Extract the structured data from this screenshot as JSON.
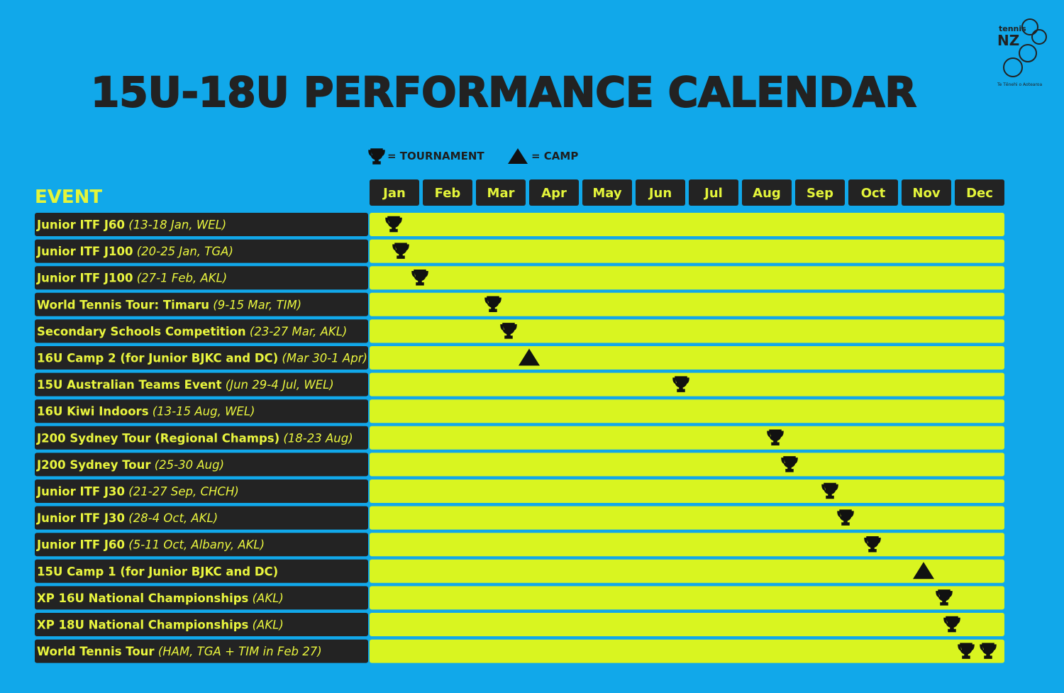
{
  "header": {
    "title": "15U-18U PERFORMANCE CALENDAR",
    "logo": {
      "word": "tennis",
      "mark": "NZ",
      "tagline": "Te Tēnehi o Aotearoa"
    }
  },
  "legend": {
    "tournament": "= TOURNAMENT",
    "camp": "= CAMP"
  },
  "table": {
    "event_header": "EVENT",
    "months": [
      "Jan",
      "Feb",
      "Mar",
      "Apr",
      "May",
      "Jun",
      "Jul",
      "Aug",
      "Sep",
      "Oct",
      "Nov",
      "Dec"
    ],
    "rows": [
      {
        "name": "Junior ITF J60",
        "detail": "(13-18 Jan, WEL)"
      },
      {
        "name": "Junior ITF J100",
        "detail": "(20-25 Jan, TGA)"
      },
      {
        "name": "Junior ITF J100",
        "detail": "(27-1 Feb, AKL)"
      },
      {
        "name": "World Tennis Tour: Timaru",
        "detail": "(9-15 Mar, TIM)"
      },
      {
        "name": "Secondary Schools Competition",
        "detail": "(23-27 Mar, AKL)"
      },
      {
        "name": "16U Camp 2 (for Junior BJKC and DC)",
        "detail": "(Mar 30-1 Apr)"
      },
      {
        "name": "15U Australian Teams Event",
        "detail": "(Jun 29-4 Jul, WEL)"
      },
      {
        "name": "16U Kiwi Indoors",
        "detail": "(13-15 Aug, WEL)"
      },
      {
        "name": "J200 Sydney Tour (Regional Champs)",
        "detail": "(18-23 Aug)"
      },
      {
        "name": "J200 Sydney Tour",
        "detail": "(25-30 Aug)"
      },
      {
        "name": "Junior ITF J30",
        "detail": "(21-27 Sep, CHCH)"
      },
      {
        "name": "Junior ITF J30",
        "detail": "(28-4 Oct, AKL)"
      },
      {
        "name": "Junior ITF J60",
        "detail": "(5-11 Oct, Albany, AKL)"
      },
      {
        "name": "15U Camp 1 (for Junior BJKC and DC)",
        "detail": ""
      },
      {
        "name": "XP 16U National Championships",
        "detail": "(AKL)"
      },
      {
        "name": "XP 18U National Championships",
        "detail": "(AKL)"
      },
      {
        "name": "World Tennis Tour",
        "detail": "(HAM, TGA + TIM in Feb 27)"
      }
    ]
  }
}
